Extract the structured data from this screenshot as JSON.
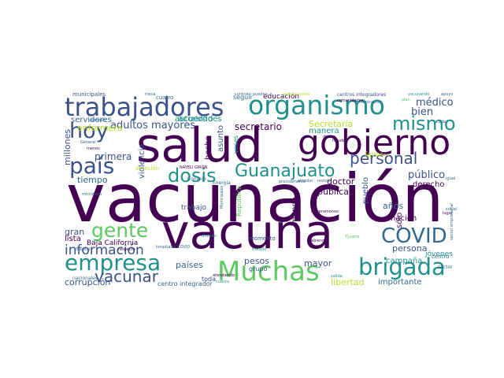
{
  "palette": {
    "dark_purple": "#440154",
    "indigo": "#3b528b",
    "slate": "#31688e",
    "teal": "#21918c",
    "green": "#5ec962",
    "yellow_green": "#b5de2b",
    "yellow": "#fde725"
  },
  "words": [
    {
      "text": "vacunación",
      "color": "#440154"
    },
    {
      "text": "vacuna",
      "color": "#440154"
    },
    {
      "text": "salud",
      "color": "#440154"
    },
    {
      "text": "gobierno",
      "color": "#440154"
    },
    {
      "text": "trabajadores",
      "color": "#3b528b"
    },
    {
      "text": "organismo",
      "color": "#21918c"
    },
    {
      "text": "Muchas",
      "color": "#5ec962"
    },
    {
      "text": "empresa",
      "color": "#21918c"
    },
    {
      "text": "brigada",
      "color": "#21918c"
    },
    {
      "text": "COVID",
      "color": "#31688e"
    },
    {
      "text": "mismo",
      "color": "#21918c"
    },
    {
      "text": "dosis",
      "color": "#21918c"
    },
    {
      "text": "país",
      "color": "#3b528b"
    },
    {
      "text": "hoy",
      "color": "#3b528b"
    },
    {
      "text": "personal",
      "color": "#3b528b"
    },
    {
      "text": "Guanajuato",
      "color": "#21918c"
    },
    {
      "text": "gente",
      "color": "#5ec962"
    },
    {
      "text": "información",
      "color": "#3b528b"
    },
    {
      "text": "vacunar",
      "color": "#3b528b"
    },
    {
      "text": "adultos mayores",
      "color": "#3b528b"
    },
    {
      "text": "médico",
      "color": "#3b528b"
    },
    {
      "text": "bien",
      "color": "#3b528b"
    },
    {
      "text": "secretario",
      "color": "#440154"
    },
    {
      "text": "Secretaría",
      "color": "#b5de2b"
    },
    {
      "text": "público",
      "color": "#3b528b"
    },
    {
      "text": "derecho",
      "color": "#440154"
    },
    {
      "text": "primera",
      "color": "#3b528b"
    },
    {
      "text": "tiempo",
      "color": "#31688e"
    },
    {
      "text": "enfermera",
      "color": "#b5de2b"
    },
    {
      "text": "servidores",
      "color": "#31688e"
    },
    {
      "text": "millones",
      "color": "#3b528b"
    },
    {
      "text": "violencia",
      "color": "#3b528b"
    },
    {
      "text": "hecho",
      "color": "#440154"
    },
    {
      "text": "asunto",
      "color": "#3b528b"
    },
    {
      "text": "acuerdo",
      "color": "#21918c"
    },
    {
      "text": "autoridades",
      "color": "#21918c"
    },
    {
      "text": "doctor",
      "color": "#440154"
    },
    {
      "text": "pública",
      "color": "#440154"
    },
    {
      "text": "pueblo",
      "color": "#3b528b"
    },
    {
      "text": "favor",
      "color": "#b5de2b"
    },
    {
      "text": "nación",
      "color": "#440154"
    },
    {
      "text": "sólo",
      "color": "#440154"
    },
    {
      "text": "años",
      "color": "#31688e"
    },
    {
      "text": "persona",
      "color": "#3b528b"
    },
    {
      "text": "campaña",
      "color": "#21918c"
    },
    {
      "text": "jóvenes",
      "color": "#21918c"
    },
    {
      "text": "mayor",
      "color": "#3b528b"
    },
    {
      "text": "pesos",
      "color": "#3b528b"
    },
    {
      "text": "libertad",
      "color": "#b5de2b"
    },
    {
      "text": "importante",
      "color": "#31688e"
    },
    {
      "text": "países",
      "color": "#31688e"
    },
    {
      "text": "corrupción",
      "color": "#3b528b"
    },
    {
      "text": "gran",
      "color": "#3b528b"
    },
    {
      "text": "lista",
      "color": "#440154"
    },
    {
      "text": "Baja California",
      "color": "#440154"
    },
    {
      "text": "educación",
      "color": "#440154"
    },
    {
      "text": "seguir",
      "color": "#31688e"
    },
    {
      "text": "mundo",
      "color": "#440154"
    },
    {
      "text": "manera",
      "color": "#21918c"
    },
    {
      "text": "trabajo",
      "color": "#3b528b"
    },
    {
      "text": "centro integrador",
      "color": "#31688e"
    },
    {
      "text": "toda",
      "color": "#3b528b"
    },
    {
      "text": "centros integradores",
      "color": "#3b528b"
    },
    {
      "text": "municipales",
      "color": "#3b528b"
    },
    {
      "text": "cuatro",
      "color": "#31688e"
    },
    {
      "text": "atención",
      "color": "#b5de2b"
    },
    {
      "text": "veces",
      "color": "#21918c"
    },
    {
      "text": "grupo",
      "color": "#3b528b"
    },
    {
      "text": "momento",
      "color": "#3b528b"
    },
    {
      "text": "República",
      "color": "#5ec962"
    },
    {
      "text": "nacionales",
      "color": "#31688e"
    },
    {
      "text": "centro",
      "color": "#31688e"
    },
    {
      "text": "sector",
      "color": "#31688e"
    },
    {
      "text": "vacunando",
      "color": "#21918c"
    },
    {
      "text": "comunidades",
      "color": "#440154"
    },
    {
      "text": "Hospital",
      "color": "#31688e"
    },
    {
      "text": "Consejo",
      "color": "#31688e"
    },
    {
      "text": "dinero",
      "color": "#440154"
    },
    {
      "text": "Energía",
      "color": "#31688e"
    },
    {
      "text": "igual",
      "color": "#31688e"
    },
    {
      "text": "lugar",
      "color": "#440154"
    },
    {
      "text": "respecto",
      "color": "#440154"
    },
    {
      "text": "director",
      "color": "#21918c"
    },
    {
      "text": "tratado",
      "color": "#21918c"
    },
    {
      "text": "cada",
      "color": "#31688e"
    },
    {
      "text": "uno",
      "color": "#b5de2b"
    },
    {
      "text": "plan",
      "color": "#5ec962"
    },
    {
      "text": "apoyo",
      "color": "#31688e"
    },
    {
      "text": "mesa",
      "color": "#31688e"
    },
    {
      "text": "contrato",
      "color": "#31688e"
    },
    {
      "text": "pueden",
      "color": "#31688e"
    },
    {
      "text": "representante",
      "color": "#b5de2b"
    },
    {
      "text": "ejemplo",
      "color": "#31688e"
    },
    {
      "text": "menos",
      "color": "#440154"
    },
    {
      "text": "General",
      "color": "#31688e"
    },
    {
      "text": "microfono",
      "color": "#31688e"
    },
    {
      "text": "NAYELI GIRÓN",
      "color": "#440154"
    },
    {
      "text": "atender",
      "color": "#31688e"
    },
    {
      "text": "revisar",
      "color": "#31688e"
    },
    {
      "text": "fraude",
      "color": "#440154"
    },
    {
      "text": "carreramonos",
      "color": "#440154"
    },
    {
      "text": "habiendo",
      "color": "#440154"
    },
    {
      "text": "salida",
      "color": "#21918c"
    },
    {
      "text": "Tijuana",
      "color": "#5ec962"
    },
    {
      "text": "cuanto",
      "color": "#21918c"
    },
    {
      "text": "atendiendo",
      "color": "#440154"
    },
    {
      "text": "hospitales COVID",
      "color": "#31688e"
    },
    {
      "text": "precisamente",
      "color": "#31688e"
    },
    {
      "text": "Municipales",
      "color": "#31688e"
    },
    {
      "text": "comunicacion",
      "color": "#31688e"
    },
    {
      "text": "sector empresarial",
      "color": "#31688e"
    },
    {
      "text": "social",
      "color": "#31688e"
    }
  ]
}
